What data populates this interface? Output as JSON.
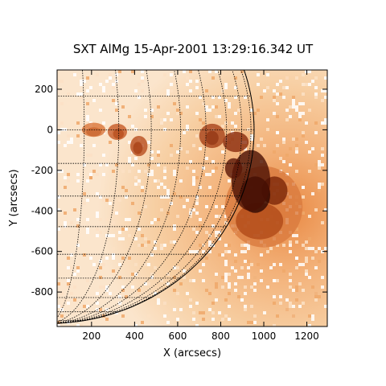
{
  "title": "SXT AlMg 15-Apr-2001 13:29:16.342 UT",
  "xlabel": "X (arcsecs)",
  "ylabel": "Y (arcsecs)",
  "xaxis": {
    "range": [
      40,
      1295
    ],
    "ticks": [
      200,
      400,
      600,
      800,
      1000,
      1200
    ],
    "tick_labels": [
      "200",
      "400",
      "600",
      "800",
      "1000",
      "1200"
    ]
  },
  "yaxis": {
    "range": [
      -970,
      295
    ],
    "ticks": [
      200,
      0,
      -200,
      -400,
      -600,
      -800
    ],
    "tick_labels": [
      "200",
      "0",
      "-200",
      "-400",
      "-600",
      "-800"
    ]
  },
  "colors": {
    "background": "#ffffff",
    "emission_low": "#f6c28a",
    "emission_mid": "#d26a2a",
    "emission_high": "#3a0c02",
    "grid": "#000000"
  },
  "solar_limb_radius_arcsec": 955,
  "grid_spacing_deg": 10
}
